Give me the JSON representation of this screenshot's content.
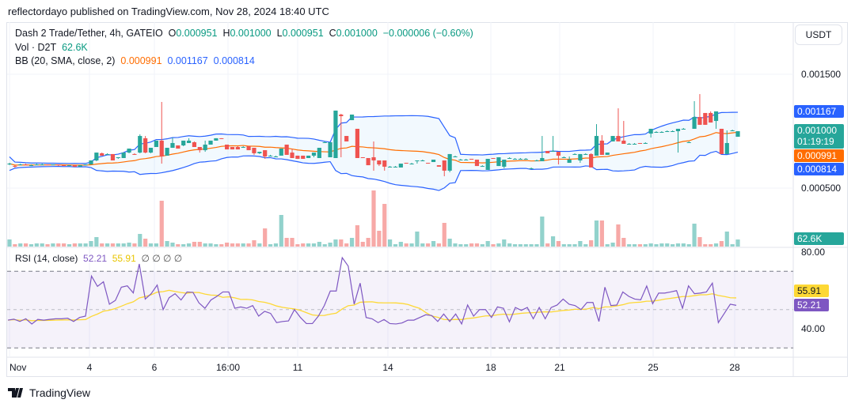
{
  "header": {
    "published": "reflectordayo published on TradingView.com, Nov 28, 2024 18:40 UTC"
  },
  "legend": {
    "symbol": "Dash 2 Trade/Tether, 4h, GATEIO",
    "o_label": "O",
    "o": "0.000951",
    "h_label": "H",
    "h": "0.001000",
    "l_label": "L",
    "l": "0.000951",
    "c_label": "C",
    "c": "0.001000",
    "change": "−0.000006 (−0.60%)",
    "vol_label": "Vol · D2T",
    "vol": "62.6K",
    "bb_label": "BB (20, SMA, close, 2)",
    "bb_mid": "0.000991",
    "bb_upper": "0.001167",
    "bb_lower": "0.000814",
    "rsi_label": "RSI (14, close)",
    "rsi": "52.21",
    "rsi_ma": "55.91",
    "rsi_extra": "∅ ∅ ∅ ∅"
  },
  "currency_button": "USDT",
  "price_axis": {
    "ticks": [
      "0.001500",
      "0.000500"
    ],
    "tag_upper": "0.001167",
    "tag_close": "0.001000",
    "tag_countdown": "01:19:19",
    "tag_mid": "0.000991",
    "tag_lower": "0.000814",
    "tag_volume": "62.6K"
  },
  "rsi_axis": {
    "ticks": [
      "80.00",
      "40.00"
    ],
    "tag_ma": "55.91",
    "tag_rsi": "52.21"
  },
  "time_axis": {
    "labels": [
      "Nov",
      "4",
      "6",
      "16:00",
      "11",
      "14",
      "18",
      "21",
      "25",
      "28"
    ]
  },
  "brand": "TradingView",
  "colors": {
    "up": "#26a69a",
    "down": "#ef5350",
    "bb_band": "#2962ff",
    "bb_basis": "#ff6d00",
    "rsi": "#7e57c2",
    "rsi_ma": "#fdd835"
  },
  "chart_data": {
    "type": "candlestick",
    "interval": "4h",
    "price_ticks": [
      0.0015,
      0.0005
    ],
    "candles_ohlc": [
      [
        0.000708,
        0.000722,
        0.000701,
        0.000715
      ],
      [
        0.000694,
        0.000701,
        0.000681,
        0.000688
      ],
      [
        0.000708,
        0.000715,
        0.000701,
        0.000708
      ],
      [
        0.000708,
        0.000715,
        0.000701,
        0.000701
      ],
      [
        0.000701,
        0.000708,
        0.000694,
        0.000701
      ],
      [
        0.000701,
        0.000715,
        0.000701,
        0.000708
      ],
      [
        0.000708,
        0.000715,
        0.000701,
        0.000708
      ],
      [
        0.000708,
        0.000708,
        0.000701,
        0.000701
      ],
      [
        0.000701,
        0.000708,
        0.000701,
        0.000708
      ],
      [
        0.000708,
        0.000708,
        0.000694,
        0.000701
      ],
      [
        0.000701,
        0.000701,
        0.000694,
        0.000694
      ],
      [
        0.000694,
        0.000701,
        0.000694,
        0.000701
      ],
      [
        0.000701,
        0.000701,
        0.000688,
        0.000688
      ],
      [
        0.000688,
        0.000701,
        0.000688,
        0.000701
      ],
      [
        0.000701,
        0.000708,
        0.000701,
        0.000708
      ],
      [
        0.000708,
        0.000743,
        0.000708,
        0.000743
      ],
      [
        0.000743,
        0.000812,
        0.000736,
        0.000812
      ],
      [
        0.000806,
        0.000812,
        0.000785,
        0.000785
      ],
      [
        0.000799,
        0.000806,
        0.000792,
        0.000799
      ],
      [
        0.000799,
        0.000799,
        0.000743,
        0.000743
      ],
      [
        0.000764,
        0.000771,
        0.000757,
        0.000771
      ],
      [
        0.000764,
        0.000812,
        0.000764,
        0.000812
      ],
      [
        0.000812,
        0.000847,
        0.000806,
        0.000847
      ],
      [
        0.000799,
        0.000806,
        0.000792,
        0.000792
      ],
      [
        0.000812,
        0.000972,
        0.000806,
        0.000958
      ],
      [
        0.000938,
        0.000958,
        0.000806,
        0.000812
      ],
      [
        0.000812,
        0.000854,
        0.000806,
        0.000854
      ],
      [
        0.000861,
        0.000917,
        0.000861,
        0.000917
      ],
      [
        0.000917,
        0.001257,
        0.000715,
        0.000778
      ],
      [
        0.000785,
        0.000854,
        0.000785,
        0.000854
      ],
      [
        0.000854,
        0.000944,
        0.000854,
        0.000896
      ],
      [
        0.000875,
        0.000875,
        0.000847,
        0.000847
      ],
      [
        0.000875,
        0.000917,
        0.000868,
        0.000917
      ],
      [
        0.000896,
        0.000938,
        0.000896,
        0.000917
      ],
      [
        0.000903,
        0.00091,
        0.000861,
        0.000861
      ],
      [
        0.000861,
        0.000861,
        0.000812,
        0.000833
      ],
      [
        0.000833,
        0.000917,
        0.000819,
        0.000882
      ],
      [
        0.000882,
        0.000917,
        0.000882,
        0.000917
      ],
      [
        0.000917,
        0.000938,
        0.000917,
        0.000938
      ],
      [
        0.000938,
        0.000938,
        0.000931,
        0.000931
      ],
      [
        0.000882,
        0.000882,
        0.00084,
        0.00084
      ],
      [
        0.000861,
        0.000861,
        0.00084,
        0.00084
      ],
      [
        0.000861,
        0.000868,
        0.00084,
        0.00084
      ],
      [
        0.000861,
        0.000868,
        0.000854,
        0.000861
      ],
      [
        0.000868,
        0.000868,
        0.000833,
        0.000833
      ],
      [
        0.000854,
        0.000854,
        0.000792,
        0.000806
      ],
      [
        0.000806,
        0.000819,
        0.000799,
        0.000819
      ],
      [
        0.000833,
        0.000833,
        0.000757,
        0.000778
      ],
      [
        0.000785,
        0.000792,
        0.000778,
        0.000785
      ],
      [
        0.000778,
        0.000785,
        0.000771,
        0.000778
      ],
      [
        0.000785,
        0.000847,
        0.000785,
        0.000847
      ],
      [
        0.000882,
        0.000882,
        0.000792,
        0.000792
      ],
      [
        0.000812,
        0.000847,
        0.000764,
        0.000764
      ],
      [
        0.000785,
        0.000785,
        0.000757,
        0.000757
      ],
      [
        0.000785,
        0.000785,
        0.000757,
        0.000757
      ],
      [
        0.000764,
        0.000785,
        0.000764,
        0.000785
      ],
      [
        0.000785,
        0.000812,
        0.000771,
        0.000812
      ],
      [
        0.000764,
        0.000854,
        0.000764,
        0.000854
      ],
      [
        0.000903,
        0.00091,
        0.000896,
        0.000903
      ],
      [
        0.000771,
        0.000903,
        0.000771,
        0.000903
      ],
      [
        0.000764,
        0.001181,
        0.000764,
        0.001181
      ],
      [
        0.001146,
        0.001153,
        0.000771,
        0.001132
      ],
      [
        0.000958,
        0.000958,
        0.00091,
        0.00091
      ],
      [
        0.001097,
        0.001146,
        0.001097,
        0.001146
      ],
      [
        0.001021,
        0.001021,
        0.000764,
        0.000764
      ],
      [
        0.000771,
        0.000771,
        0.000764,
        0.000764
      ],
      [
        0.000764,
        0.000764,
        0.000701,
        0.000701
      ],
      [
        0.000771,
        0.00091,
        0.000653,
        0.000743
      ],
      [
        0.000743,
        0.000743,
        0.000694,
        0.000708
      ],
      [
        0.000743,
        0.000743,
        0.000653,
        0.000688
      ],
      [
        0.000688,
        0.000694,
        0.000681,
        0.000688
      ],
      [
        0.000688,
        0.000694,
        0.000681,
        0.000688
      ],
      [
        0.000681,
        0.000715,
        0.000681,
        0.000715
      ],
      [
        0.000722,
        0.000722,
        0.000715,
        0.000715
      ],
      [
        0.000715,
        0.000722,
        0.000708,
        0.000715
      ],
      [
        0.000736,
        0.000743,
        0.000715,
        0.000743
      ],
      [
        0.000743,
        0.00075,
        0.000736,
        0.000743
      ],
      [
        0.000722,
        0.000722,
        0.000715,
        0.000715
      ],
      [
        0.000729,
        0.00075,
        0.000729,
        0.00075
      ],
      [
        0.000701,
        0.000701,
        0.000688,
        0.000688
      ],
      [
        0.000743,
        0.000743,
        0.000604,
        0.000653
      ],
      [
        0.000653,
        0.000799,
        0.000639,
        0.000799
      ],
      [
        0.000778,
        0.000785,
        0.000771,
        0.000778
      ],
      [
        0.00075,
        0.000757,
        0.000743,
        0.00075
      ],
      [
        0.00075,
        0.000757,
        0.000743,
        0.00075
      ],
      [
        0.000757,
        0.000757,
        0.00075,
        0.00075
      ],
      [
        0.00075,
        0.00075,
        0.000694,
        0.000694
      ],
      [
        0.000694,
        0.000701,
        0.000688,
        0.000694
      ],
      [
        0.00066,
        0.000757,
        0.00066,
        0.000757
      ],
      [
        0.000764,
        0.000764,
        0.000757,
        0.000757
      ],
      [
        0.000694,
        0.000771,
        0.000694,
        0.000771
      ],
      [
        0.000688,
        0.00075,
        0.000674,
        0.00075
      ],
      [
        0.000764,
        0.000771,
        0.000757,
        0.000764
      ],
      [
        0.000757,
        0.000764,
        0.00075,
        0.000757
      ],
      [
        0.000757,
        0.000764,
        0.00075,
        0.000757
      ],
      [
        0.000757,
        0.000764,
        0.00075,
        0.000757
      ],
      [
        0.000674,
        0.000681,
        0.000667,
        0.000674
      ],
      [
        0.000743,
        0.00075,
        0.000736,
        0.000743
      ],
      [
        0.000736,
        0.000958,
        0.000736,
        0.000764
      ],
      [
        0.000826,
        0.000826,
        0.000806,
        0.000806
      ],
      [
        0.000819,
        0.000958,
        0.000819,
        0.000826
      ],
      [
        0.000819,
        0.000819,
        0.000708,
        0.000785
      ],
      [
        0.000771,
        0.000778,
        0.000764,
        0.000771
      ],
      [
        0.000722,
        0.000778,
        0.000722,
        0.00075
      ],
      [
        0.000799,
        0.000806,
        0.000792,
        0.000799
      ],
      [
        0.000743,
        0.000799,
        0.000722,
        0.000799
      ],
      [
        0.000799,
        0.000806,
        0.000792,
        0.000799
      ],
      [
        0.000799,
        0.000806,
        0.000681,
        0.000681
      ],
      [
        0.000785,
        0.001062,
        0.000785,
        0.000958
      ],
      [
        0.000917,
        0.000965,
        0.000792,
        0.000792
      ],
      [
        0.000792,
        0.000812,
        0.000792,
        0.000812
      ],
      [
        0.00091,
        0.000958,
        0.00091,
        0.000958
      ],
      [
        0.000958,
        0.001201,
        0.00091,
        0.00091
      ],
      [
        0.000917,
        0.00109,
        0.000889,
        0.000889
      ],
      [
        0.000889,
        0.000896,
        0.000882,
        0.000889
      ],
      [
        0.000889,
        0.000896,
        0.000882,
        0.000889
      ],
      [
        0.000896,
        0.000896,
        0.000889,
        0.000889
      ],
      [
        0.000896,
        0.000903,
        0.000889,
        0.000896
      ],
      [
        0.000979,
        0.001021,
        0.000944,
        0.001021
      ],
      [
        0.000993,
        0.001,
        0.000986,
        0.000993
      ],
      [
        0.000993,
        0.001,
        0.000986,
        0.000993
      ],
      [
        0.001,
        0.001007,
        0.000993,
        0.001
      ],
      [
        0.001,
        0.001007,
        0.000993,
        0.001
      ],
      [
        0.001,
        0.001021,
        0.000812,
        0.001021
      ],
      [
        0.001021,
        0.001028,
        0.001014,
        0.001021
      ],
      [
        0.000903,
        0.00091,
        0.000896,
        0.000903
      ],
      [
        0.001021,
        0.001264,
        0.001021,
        0.001125
      ],
      [
        0.001125,
        0.001326,
        0.001056,
        0.001056
      ],
      [
        0.00116,
        0.00116,
        0.001056,
        0.001056
      ],
      [
        0.00116,
        0.001174,
        0.001076,
        0.001076
      ],
      [
        0.00109,
        0.001174,
        0.001021,
        0.001174
      ],
      [
        0.001021,
        0.001021,
        0.000799,
        0.000799
      ],
      [
        0.000799,
        0.001007,
        0.000799,
        0.000896
      ],
      [
        0.001007,
        0.001014,
        0.001,
        0.001007
      ],
      [
        0.000951,
        0.001,
        0.000951,
        0.001
      ]
    ],
    "volume": [
      63000,
      21000,
      28000,
      28000,
      21000,
      28000,
      28000,
      21000,
      28000,
      28000,
      28000,
      21000,
      28000,
      28000,
      28000,
      49000,
      84000,
      28000,
      28000,
      28000,
      28000,
      28000,
      35000,
      28000,
      112000,
      70000,
      28000,
      28000,
      406000,
      49000,
      35000,
      21000,
      21000,
      28000,
      42000,
      42000,
      28000,
      28000,
      21000,
      21000,
      35000,
      28000,
      28000,
      28000,
      28000,
      56000,
      28000,
      161000,
      21000,
      28000,
      280000,
      77000,
      77000,
      21000,
      28000,
      28000,
      28000,
      42000,
      21000,
      35000,
      63000,
      63000,
      28000,
      77000,
      189000,
      42000,
      77000,
      497000,
      140000,
      378000,
      63000,
      21000,
      42000,
      28000,
      28000,
      133000,
      28000,
      28000,
      49000,
      28000,
      210000,
      70000,
      28000,
      21000,
      21000,
      28000,
      28000,
      21000,
      49000,
      21000,
      28000,
      63000,
      28000,
      21000,
      21000,
      21000,
      21000,
      21000,
      266000,
      28000,
      91000,
      49000,
      21000,
      21000,
      21000,
      49000,
      21000,
      56000,
      231000,
      231000,
      21000,
      35000,
      196000,
      77000,
      21000,
      21000,
      21000,
      21000,
      28000,
      21000,
      28000,
      28000,
      21000,
      28000,
      28000,
      21000,
      203000,
      84000,
      21000,
      21000,
      28000,
      49000,
      133000,
      21000,
      62600
    ],
    "bollinger": {
      "length": 20,
      "ma": "SMA",
      "source": "close",
      "stddev": 2,
      "last_basis": 0.000991,
      "last_upper": 0.001167,
      "last_lower": 0.000814
    },
    "rsi": {
      "length": 14,
      "source": "close",
      "ticks": [
        80,
        40
      ],
      "bands": [
        70,
        50,
        30
      ],
      "last": 52.21,
      "last_ma": 55.91,
      "values": [
        44.5,
        45.0,
        43.8,
        45.2,
        42.5,
        44.9,
        44.5,
        44.9,
        45.2,
        45.2,
        45.5,
        43.8,
        45.9,
        46.6,
        67.5,
        62.1,
        64.5,
        52.8,
        54.8,
        61.7,
        62.4,
        58.7,
        73.8,
        55.5,
        58.3,
        62.8,
        50.0,
        56.2,
        58.3,
        55.0,
        59.2,
        59.0,
        53.5,
        50.7,
        55.0,
        56.9,
        59.2,
        59.2,
        50.7,
        51.4,
        50.7,
        52.1,
        46.6,
        49.1,
        48.0,
        43.2,
        43.8,
        44.1,
        50.0,
        45.9,
        42.7,
        42.7,
        46.6,
        52.1,
        59.7,
        59.7,
        77.1,
        72.7,
        52.8,
        63.8,
        45.9,
        45.2,
        43.2,
        44.8,
        42.7,
        42.5,
        43.0,
        44.5,
        44.5,
        45.9,
        47.3,
        46.9,
        43.8,
        47.7,
        43.8,
        47.7,
        42.5,
        52.4,
        46.6,
        50.0,
        50.0,
        45.9,
        51.4,
        50.7,
        43.6,
        51.1,
        49.6,
        51.1,
        45.2,
        51.1,
        45.2,
        51.1,
        52.4,
        55.5,
        52.8,
        52.1,
        50.0,
        53.7,
        53.7,
        43.8,
        61.7,
        52.1,
        52.4,
        59.2,
        56.9,
        55.5,
        55.1,
        62.3,
        53.1,
        58.6,
        58.6,
        59.2,
        59.9,
        50.7,
        62.4,
        58.3,
        58.6,
        59.2,
        63.8,
        43.2,
        48.0,
        52.8,
        52.21
      ]
    }
  }
}
